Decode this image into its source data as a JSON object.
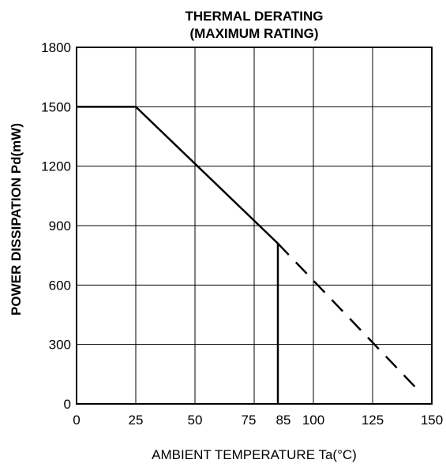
{
  "chart_data": {
    "type": "line",
    "title": "THERMAL DERATING",
    "subtitle": "(MAXIMUM RATING)",
    "xlabel": "AMBIENT TEMPERATURE Ta(°C)",
    "ylabel": "POWER DISSIPATION Pd(mW)",
    "xlim": [
      0,
      150
    ],
    "ylim": [
      0,
      1800
    ],
    "x_ticks": [
      0,
      25,
      50,
      75,
      85,
      100,
      125,
      150
    ],
    "x_tick_labels": [
      "0",
      "25",
      "50",
      "75",
      "85",
      "100",
      "125",
      "150"
    ],
    "x_grid": [
      25,
      50,
      75,
      100,
      125
    ],
    "y_ticks": [
      0,
      300,
      600,
      900,
      1200,
      1500,
      1800
    ],
    "y_tick_labels": [
      "0",
      "300",
      "600",
      "900",
      "1200",
      "1500",
      "1800"
    ],
    "grid": true,
    "series": [
      {
        "style": "solid",
        "x": [
          0,
          25,
          85
        ],
        "y": [
          1500,
          1500,
          810
        ]
      },
      {
        "style": "solid",
        "x": [
          85,
          85
        ],
        "y": [
          810,
          0
        ]
      },
      {
        "style": "dashed",
        "x": [
          85,
          145
        ],
        "y": [
          810,
          60
        ]
      }
    ]
  }
}
